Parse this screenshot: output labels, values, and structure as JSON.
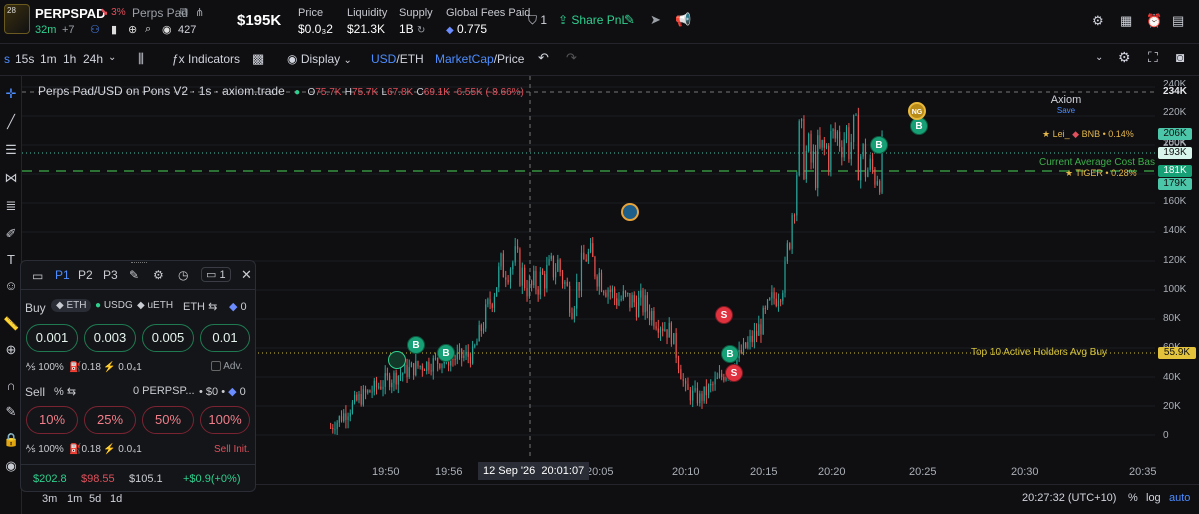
{
  "header": {
    "badge_number": "28",
    "token_symbol": "PERPSPAD",
    "price_change_badge": "3%",
    "token_name": "Perps Pad",
    "age": "32m",
    "extra_count": "+7",
    "views": "427",
    "market_cap": "$195K",
    "stats": [
      {
        "label": "Price",
        "value": "$0.0₃2"
      },
      {
        "label": "Liquidity",
        "value": "$21.3K"
      },
      {
        "label": "Supply",
        "value": "1B"
      },
      {
        "label": "Global Fees Paid",
        "value": "0.775"
      }
    ],
    "bookmark_count": "1",
    "share_label": "Share PnL"
  },
  "toolbar": {
    "timeframes": [
      "s",
      "15s",
      "1m",
      "1h",
      "24h"
    ],
    "indicators_label": "Indicators",
    "display_label": "Display",
    "currency_usd": "USD",
    "currency_eth": "ETH",
    "mode_marketcap": "MarketCap",
    "mode_price": "Price",
    "account_name": "Axiom",
    "account_sub": "Save"
  },
  "chart": {
    "legend_title": "Perps Pad/USD on Pons V2 · 1s · axiom.trade",
    "ohlc": {
      "o": "75.7K",
      "h": "75.7K",
      "l": "67.8K",
      "c": "69.1K",
      "change": "-6.55K (-8.66%)"
    },
    "cost_basis_label": "Current Average Cost Basis",
    "holders_label": "Top 10 Active Holders Avg Buy",
    "annotation_1": "Lei_",
    "annotation_1b": "BNB • 0.14%",
    "annotation_2": "TIGER • 0.28%",
    "crosshair_date": "12 Sep '26",
    "crosshair_time": "20:01:07",
    "timestamp": "20:27:32 (UTC+10)",
    "percent_label": "%",
    "log_label": "log",
    "auto_label": "auto",
    "range_buttons": [
      "3m",
      "1m",
      "5d",
      "1d"
    ],
    "y_ticks": [
      "240K",
      "220K",
      "200K",
      "180K",
      "160K",
      "140K",
      "120K",
      "100K",
      "80K",
      "60K",
      "40K",
      "20K",
      "0"
    ],
    "x_ticks": [
      "19:50",
      "19:56",
      "20:05",
      "20:10",
      "20:15",
      "20:20",
      "20:25",
      "20:30",
      "20:35"
    ],
    "price_boxes": [
      {
        "label": "234K",
        "color": "#0f0f12",
        "text": "#e5e7eb"
      },
      {
        "label": "206K",
        "color": "#4bc6a8"
      },
      {
        "label": "193K",
        "color": "#d7f5ea"
      },
      {
        "label": "181K",
        "color": "#17a075"
      },
      {
        "label": "179K",
        "color": "#4bc6a8"
      },
      {
        "label": "55.9K",
        "color": "#e2c33b"
      }
    ]
  },
  "chart_data": {
    "type": "line",
    "title": "Perps Pad/USD on Pons V2 · 1s · axiom.trade",
    "ylabel": "",
    "xlabel": "",
    "ylim": [
      0,
      240000
    ],
    "x": [
      "19:48",
      "19:50",
      "19:52",
      "19:54",
      "19:56",
      "19:58",
      "20:00",
      "20:01",
      "20:02",
      "20:04",
      "20:05",
      "20:06",
      "20:08",
      "20:10",
      "20:12",
      "20:13",
      "20:14",
      "20:16",
      "20:18",
      "20:20",
      "20:21",
      "20:22",
      "20:24",
      "20:25",
      "20:26",
      "20:27"
    ],
    "series": [
      {
        "values": [
          5000,
          25000,
          38000,
          47000,
          52000,
          55000,
          115000,
          120000,
          100000,
          118000,
          90000,
          125000,
          95000,
          90000,
          70000,
          30000,
          25000,
          45000,
          70000,
          110000,
          200000,
          185000,
          210000,
          200000,
          180000,
          190000
        ]
      }
    ],
    "markers": [
      {
        "type": "B",
        "x": "19:54"
      },
      {
        "type": "B",
        "x": "19:57"
      },
      {
        "type": "S",
        "x": "20:12"
      },
      {
        "type": "B",
        "x": "20:12"
      },
      {
        "type": "S",
        "x": "20:13"
      },
      {
        "type": "B",
        "x": "20:21"
      },
      {
        "type": "B",
        "x": "20:24"
      }
    ],
    "hlines": [
      {
        "label": "Current Average Cost Basis",
        "y": 181000
      },
      {
        "label": "Top 10 Active Holders Avg Buy",
        "y": 55900
      }
    ]
  },
  "panel": {
    "presets": [
      "P1",
      "P2",
      "P3"
    ],
    "count": "1",
    "buy_label": "Buy",
    "buy_tokens": [
      "ETH",
      "USDG",
      "uETH"
    ],
    "buy_currency": "ETH",
    "buy_balance": "0",
    "buy_amounts": [
      "0.001",
      "0.003",
      "0.005",
      "0.01"
    ],
    "buy_settings": {
      "slippage": "100%",
      "gas": "0.18",
      "fee": "0.0₄1",
      "adv": "Adv."
    },
    "sell_label": "Sell",
    "sell_pct": "%",
    "sell_balance": "0 PERPSP...",
    "sell_value": "$0",
    "sell_eth": "0",
    "sell_amounts": [
      "10%",
      "25%",
      "50%",
      "100%"
    ],
    "sell_settings": {
      "slippage": "100%",
      "gas": "0.18",
      "fee": "0.0₄1",
      "init": "Sell Init."
    },
    "footer": {
      "bought": "$202.8",
      "sold": "$98.55",
      "holding": "$105.1",
      "pnl": "+$0.9(+0%)"
    }
  }
}
